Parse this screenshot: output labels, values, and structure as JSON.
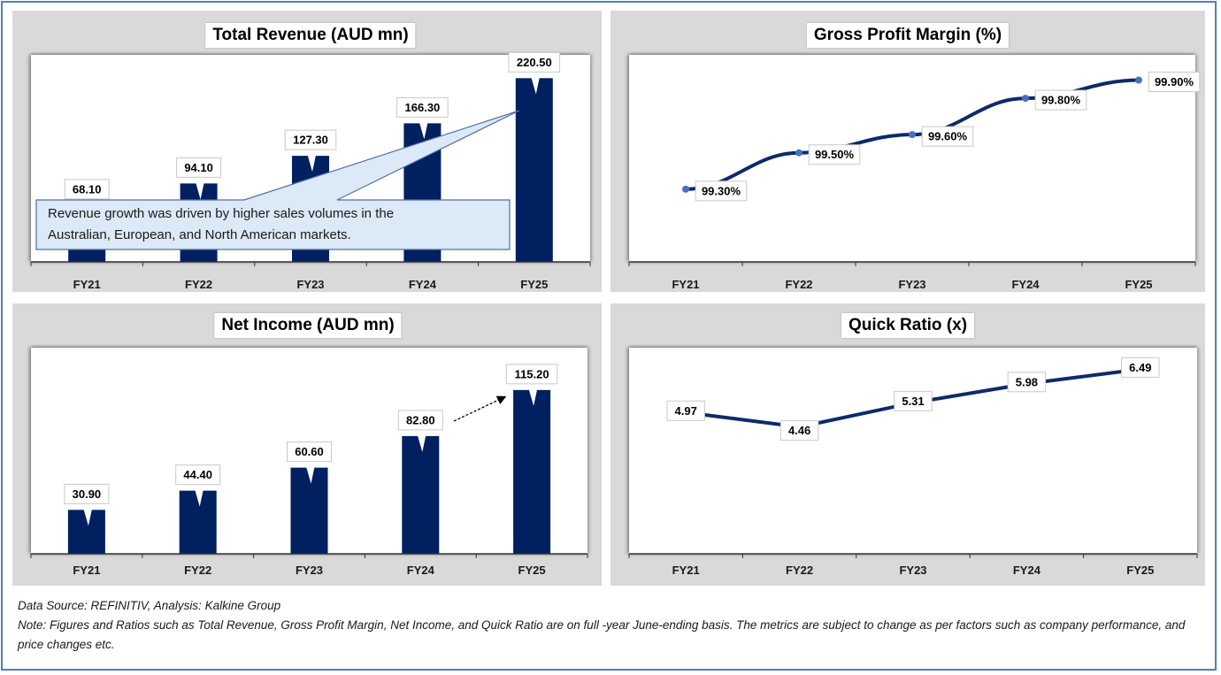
{
  "footer": {
    "source": "Data Source: REFINITIV, Analysis: Kalkine Group",
    "note": "Note: Figures and Ratios such as Total Revenue, Gross Profit Margin, Net Income, and Quick Ratio are on full -year June-ending basis. The metrics are subject to change as per factors such as company performance, and price changes etc."
  },
  "colors": {
    "bar": "#002060",
    "line": "#0d2a6b",
    "marker": "#4472c4",
    "panel_bg": "#d9d9d9",
    "frame": "#4f81bd",
    "callout_fill": "#dce9f6",
    "callout_border": "#4f6fa8"
  },
  "chart_data": [
    {
      "id": "total-revenue",
      "type": "bar",
      "title": "Total Revenue (AUD mn)",
      "categories": [
        "FY21",
        "FY22",
        "FY23",
        "FY24",
        "FY25"
      ],
      "values": [
        68.1,
        94.1,
        127.3,
        166.3,
        220.5
      ],
      "labels": [
        "68.10",
        "94.10",
        "127.30",
        "166.30",
        "220.50"
      ],
      "xlabel": "",
      "ylabel": "",
      "ylim": [
        0,
        240
      ],
      "grid": false,
      "annotation": {
        "text_line1": "Revenue growth was driven by higher sales volumes in the",
        "text_line2": "Australian, European, and North American markets.",
        "points_to": "FY25"
      }
    },
    {
      "id": "gross-profit-margin",
      "type": "line",
      "title": "Gross Profit Margin (%)",
      "categories": [
        "FY21",
        "FY22",
        "FY23",
        "FY24",
        "FY25"
      ],
      "values": [
        99.3,
        99.5,
        99.6,
        99.8,
        99.9
      ],
      "labels": [
        "99.30%",
        "99.50%",
        "99.60%",
        "99.80%",
        "99.90%"
      ],
      "xlabel": "",
      "ylabel": "",
      "ylim": [
        98.9,
        100.0
      ],
      "grid": false,
      "markers": true,
      "smooth": true
    },
    {
      "id": "net-income",
      "type": "bar",
      "title": "Net Income (AUD mn)",
      "categories": [
        "FY21",
        "FY22",
        "FY23",
        "FY24",
        "FY25"
      ],
      "values": [
        30.9,
        44.4,
        60.6,
        82.8,
        115.2
      ],
      "labels": [
        "30.90",
        "44.40",
        "60.60",
        "82.80",
        "115.20"
      ],
      "xlabel": "",
      "ylabel": "",
      "ylim": [
        0,
        140
      ],
      "grid": false,
      "annotation": {
        "type": "dashed-arrow",
        "from": "FY24",
        "to": "FY25"
      }
    },
    {
      "id": "quick-ratio",
      "type": "line",
      "title": "Quick Ratio (x)",
      "categories": [
        "FY21",
        "FY22",
        "FY23",
        "FY24",
        "FY25"
      ],
      "values": [
        4.97,
        4.46,
        5.31,
        5.98,
        6.49
      ],
      "labels": [
        "4.97",
        "4.46",
        "5.31",
        "5.98",
        "6.49"
      ],
      "xlabel": "",
      "ylabel": "",
      "ylim": [
        0,
        7
      ],
      "grid": false,
      "markers": false,
      "smooth": false
    }
  ]
}
